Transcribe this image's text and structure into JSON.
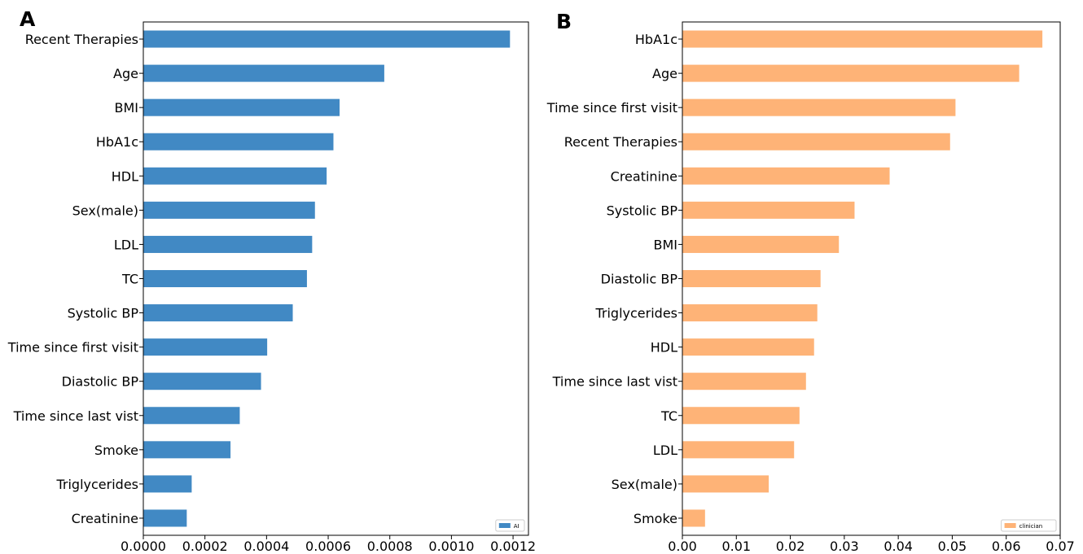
{
  "chart_data": [
    {
      "type": "bar",
      "orientation": "horizontal",
      "panel_label": "A",
      "categories": [
        "Recent Therapies",
        "Age",
        "BMI",
        "HbA1c",
        "HDL",
        "Sex(male)",
        "LDL",
        "TC",
        "Systolic BP",
        "Time since first visit",
        "Diastolic BP",
        "Time since last vist",
        "Smoke",
        "Triglycerides",
        "Creatinine"
      ],
      "series": [
        {
          "name": "AI",
          "color": "#4189c4",
          "values": [
            0.00119,
            0.000782,
            0.000637,
            0.000617,
            0.000595,
            0.000557,
            0.000548,
            0.000531,
            0.000485,
            0.000402,
            0.000382,
            0.000313,
            0.000283,
            0.000157,
            0.000141
          ]
        }
      ],
      "xlim": [
        0,
        0.00125
      ],
      "xticks": [
        "0.0000",
        "0.0002",
        "0.0004",
        "0.0006",
        "0.0008",
        "0.0010",
        "0.0012"
      ],
      "xtick_values": [
        0,
        0.0002,
        0.0004,
        0.0006,
        0.0008,
        0.001,
        0.0012
      ],
      "xlabel": "",
      "ylabel": "",
      "grid": false,
      "legend_position": "bottom-right"
    },
    {
      "type": "bar",
      "orientation": "horizontal",
      "panel_label": "B",
      "categories": [
        "HbA1c",
        "Age",
        "Time since first visit",
        "Recent Therapies",
        "Creatinine",
        "Systolic BP",
        "BMI",
        "Diastolic BP",
        "Triglycerides",
        "HDL",
        "Time since last vist",
        "TC",
        "LDL",
        "Sex(male)",
        "Smoke"
      ],
      "series": [
        {
          "name": "clinician",
          "color": "#feb377",
          "values": [
            0.0667,
            0.0624,
            0.0506,
            0.0496,
            0.0384,
            0.0319,
            0.029,
            0.0256,
            0.025,
            0.0244,
            0.0229,
            0.0217,
            0.0207,
            0.016,
            0.0042
          ]
        }
      ],
      "xlim": [
        0,
        0.07
      ],
      "xticks": [
        "0.00",
        "0.01",
        "0.02",
        "0.03",
        "0.04",
        "0.05",
        "0.06",
        "0.07"
      ],
      "xtick_values": [
        0,
        0.01,
        0.02,
        0.03,
        0.04,
        0.05,
        0.06,
        0.07
      ],
      "xlabel": "",
      "ylabel": "",
      "grid": false,
      "legend_position": "bottom-right"
    }
  ]
}
